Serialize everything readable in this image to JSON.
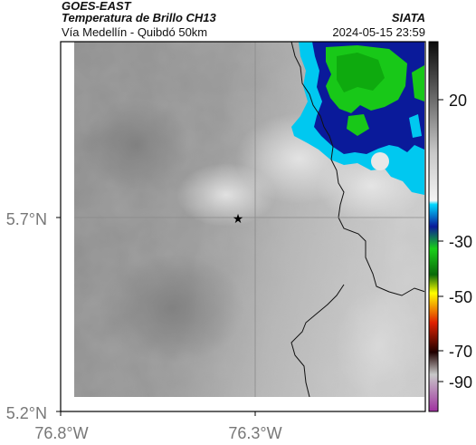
{
  "header": {
    "satellite": "GOES-EAST",
    "product": "Temperatura de Brillo CH13",
    "organization": "SIATA",
    "route": "Vía Medellín - Quibdó 50km",
    "datetime": "2024-05-15 23:59"
  },
  "map": {
    "lat_ticks": [
      "5.7°N",
      "5.2°N"
    ],
    "lon_ticks": [
      "76.8°W",
      "76.3°W"
    ],
    "marker": "star",
    "marker_color": "#000000"
  },
  "colorbar": {
    "ticks": [
      "20",
      "-30",
      "-50",
      "-70",
      "-90"
    ],
    "colors": {
      "cold_black": "#111111",
      "gray": "#9a9a9a",
      "cyan": "#00d8ff",
      "blue": "#0a1a9a",
      "green": "#18d018",
      "yellow": "#ffff00",
      "red": "#e02000",
      "magenta": "#a030a0"
    }
  }
}
